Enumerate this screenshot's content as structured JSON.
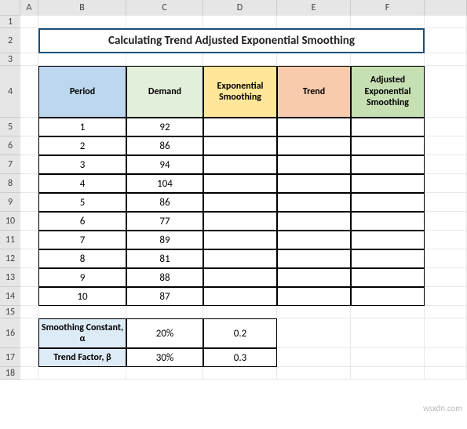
{
  "columns": [
    {
      "label": "",
      "width": 26
    },
    {
      "label": "A",
      "width": 23
    },
    {
      "label": "B",
      "width": 112
    },
    {
      "label": "C",
      "width": 98
    },
    {
      "label": "D",
      "width": 94
    },
    {
      "label": "E",
      "width": 94
    },
    {
      "label": "F",
      "width": 94
    },
    {
      "label": "",
      "width": 54
    }
  ],
  "rows": [
    {
      "label": "1",
      "height": 16
    },
    {
      "label": "2",
      "height": 32
    },
    {
      "label": "3",
      "height": 16
    },
    {
      "label": "4",
      "height": 66
    },
    {
      "label": "5",
      "height": 24
    },
    {
      "label": "6",
      "height": 24
    },
    {
      "label": "7",
      "height": 24
    },
    {
      "label": "8",
      "height": 24
    },
    {
      "label": "9",
      "height": 24
    },
    {
      "label": "10",
      "height": 24
    },
    {
      "label": "11",
      "height": 24
    },
    {
      "label": "12",
      "height": 24
    },
    {
      "label": "13",
      "height": 24
    },
    {
      "label": "14",
      "height": 24
    },
    {
      "label": "15",
      "height": 16
    },
    {
      "label": "16",
      "height": 38
    },
    {
      "label": "17",
      "height": 24
    },
    {
      "label": "18",
      "height": 16
    }
  ],
  "title": "Calculating Trend Adjusted Exponential Smoothing",
  "title_border_color": "#1f4e78",
  "headers": {
    "period": {
      "text": "Period",
      "bg": "#bdd7ee"
    },
    "demand": {
      "text": "Demand",
      "bg": "#e2efda"
    },
    "expsm": {
      "text": "Exponential Smoothing",
      "bg": "#ffe699"
    },
    "trend": {
      "text": "Trend",
      "bg": "#f8cbad"
    },
    "adj": {
      "text": "Adjusted Exponential Smoothing",
      "bg": "#c6e0b4"
    }
  },
  "table": [
    {
      "period": "1",
      "demand": "92",
      "expsm": "",
      "trend": "",
      "adj": ""
    },
    {
      "period": "2",
      "demand": "86",
      "expsm": "",
      "trend": "",
      "adj": ""
    },
    {
      "period": "3",
      "demand": "94",
      "expsm": "",
      "trend": "",
      "adj": ""
    },
    {
      "period": "4",
      "demand": "104",
      "expsm": "",
      "trend": "",
      "adj": ""
    },
    {
      "period": "5",
      "demand": "86",
      "expsm": "",
      "trend": "",
      "adj": ""
    },
    {
      "period": "6",
      "demand": "77",
      "expsm": "",
      "trend": "",
      "adj": ""
    },
    {
      "period": "7",
      "demand": "89",
      "expsm": "",
      "trend": "",
      "adj": ""
    },
    {
      "period": "8",
      "demand": "81",
      "expsm": "",
      "trend": "",
      "adj": ""
    },
    {
      "period": "9",
      "demand": "88",
      "expsm": "",
      "trend": "",
      "adj": ""
    },
    {
      "period": "10",
      "demand": "87",
      "expsm": "",
      "trend": "",
      "adj": ""
    }
  ],
  "params": {
    "alpha": {
      "label": "Smoothing Constant, α",
      "pct": "20%",
      "dec": "0.2",
      "bg": "#ddebf7"
    },
    "beta": {
      "label": "Trend Factor, β",
      "pct": "30%",
      "dec": "0.3",
      "bg": "#ddebf7"
    }
  },
  "watermark": "wsxdn.com"
}
